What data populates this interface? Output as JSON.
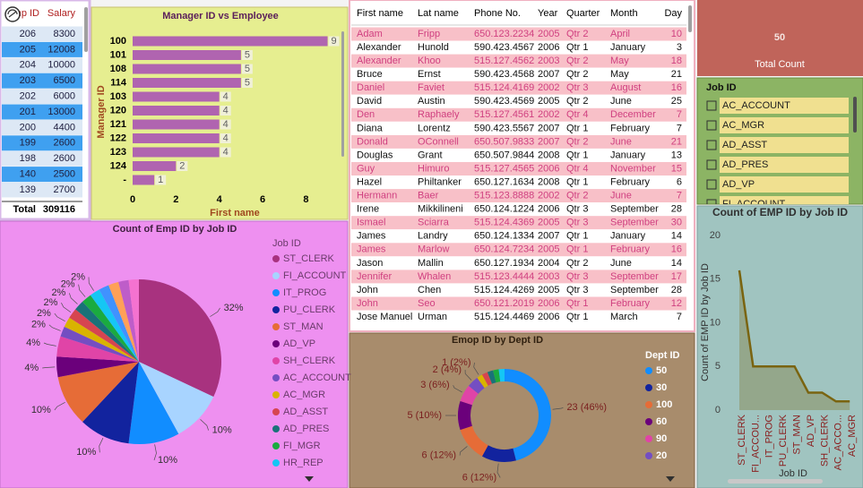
{
  "salary_table": {
    "columns": [
      "Emp ID",
      "Salary"
    ],
    "rows": [
      [
        "206",
        "8300"
      ],
      [
        "205",
        "12008"
      ],
      [
        "204",
        "10000"
      ],
      [
        "203",
        "6500"
      ],
      [
        "202",
        "6000"
      ],
      [
        "201",
        "13000"
      ],
      [
        "200",
        "4400"
      ],
      [
        "199",
        "2600"
      ],
      [
        "198",
        "2600"
      ],
      [
        "140",
        "2500"
      ],
      [
        "139",
        "2700"
      ]
    ],
    "total": [
      "Total",
      "309116"
    ]
  },
  "card": {
    "value": 50,
    "label": "Total Count"
  },
  "slicer": {
    "title": "Job ID",
    "items": [
      "AC_ACCOUNT",
      "AC_MGR",
      "AD_ASST",
      "AD_PRES",
      "AD_VP",
      "FI_ACCOUNT"
    ]
  },
  "employee_table": {
    "columns": [
      "First name",
      "Lat name",
      "Phone No.",
      "Year",
      "Quarter",
      "Month",
      "Day"
    ],
    "rows": [
      [
        "Adam",
        "Fripp",
        "650.123.2234",
        "2005",
        "Qtr 2",
        "April",
        "10"
      ],
      [
        "Alexander",
        "Hunold",
        "590.423.4567",
        "2006",
        "Qtr 1",
        "January",
        "3"
      ],
      [
        "Alexander",
        "Khoo",
        "515.127.4562",
        "2003",
        "Qtr 2",
        "May",
        "18"
      ],
      [
        "Bruce",
        "Ernst",
        "590.423.4568",
        "2007",
        "Qtr 2",
        "May",
        "21"
      ],
      [
        "Daniel",
        "Faviet",
        "515.124.4169",
        "2002",
        "Qtr 3",
        "August",
        "16"
      ],
      [
        "David",
        "Austin",
        "590.423.4569",
        "2005",
        "Qtr 2",
        "June",
        "25"
      ],
      [
        "Den",
        "Raphaely",
        "515.127.4561",
        "2002",
        "Qtr 4",
        "December",
        "7"
      ],
      [
        "Diana",
        "Lorentz",
        "590.423.5567",
        "2007",
        "Qtr 1",
        "February",
        "7"
      ],
      [
        "Donald",
        "OConnell",
        "650.507.9833",
        "2007",
        "Qtr 2",
        "June",
        "21"
      ],
      [
        "Douglas",
        "Grant",
        "650.507.9844",
        "2008",
        "Qtr 1",
        "January",
        "13"
      ],
      [
        "Guy",
        "Himuro",
        "515.127.4565",
        "2006",
        "Qtr 4",
        "November",
        "15"
      ],
      [
        "Hazel",
        "Philtanker",
        "650.127.1634",
        "2008",
        "Qtr 1",
        "February",
        "6"
      ],
      [
        "Hermann",
        "Baer",
        "515.123.8888",
        "2002",
        "Qtr 2",
        "June",
        "7"
      ],
      [
        "Irene",
        "Mikkilineni",
        "650.124.1224",
        "2006",
        "Qtr 3",
        "September",
        "28"
      ],
      [
        "Ismael",
        "Sciarra",
        "515.124.4369",
        "2005",
        "Qtr 3",
        "September",
        "30"
      ],
      [
        "James",
        "Landry",
        "650.124.1334",
        "2007",
        "Qtr 1",
        "January",
        "14"
      ],
      [
        "James",
        "Marlow",
        "650.124.7234",
        "2005",
        "Qtr 1",
        "February",
        "16"
      ],
      [
        "Jason",
        "Mallin",
        "650.127.1934",
        "2004",
        "Qtr 2",
        "June",
        "14"
      ],
      [
        "Jennifer",
        "Whalen",
        "515.123.4444",
        "2003",
        "Qtr 3",
        "September",
        "17"
      ],
      [
        "John",
        "Chen",
        "515.124.4269",
        "2005",
        "Qtr 3",
        "September",
        "28"
      ],
      [
        "John",
        "Seo",
        "650.121.2019",
        "2006",
        "Qtr 1",
        "February",
        "12"
      ],
      [
        "Jose Manuel",
        "Urman",
        "515.124.4469",
        "2006",
        "Qtr 1",
        "March",
        "7"
      ]
    ]
  },
  "chart_data": [
    {
      "type": "hbar",
      "title": "Manager ID vs Employee",
      "categories": [
        "100",
        "101",
        "108",
        "114",
        "103",
        "120",
        "121",
        "122",
        "123",
        "124",
        "-"
      ],
      "values": [
        9,
        5,
        5,
        5,
        4,
        4,
        4,
        4,
        4,
        2,
        1
      ],
      "color": "#b064b0",
      "xlim": [
        0,
        9.1
      ],
      "xticks": [
        0,
        2,
        4,
        6,
        8
      ],
      "xlabel": "First name",
      "ylabel": "Manager ID"
    },
    {
      "type": "pie",
      "title": "Count of Emp ID by Job ID",
      "legend_title": "Job ID",
      "categories": [
        "ST_CLERK",
        "FI_ACCOUNT",
        "IT_PROG",
        "PU_CLERK",
        "ST_MAN",
        "AD_VP",
        "SH_CLERK",
        "AC_ACCOUNT",
        "AC_MGR",
        "AD_ASST",
        "AD_PRES",
        "FI_MGR",
        "HR_REP",
        null,
        null,
        null,
        null
      ],
      "values": [
        32,
        10,
        10,
        10,
        10,
        4,
        4,
        2,
        2,
        2,
        2,
        2,
        2,
        2,
        2,
        2,
        2
      ],
      "value_labels": [
        "32%",
        "10%",
        "10%",
        "10%",
        "10%",
        "4%",
        "4%",
        "2%",
        "2%",
        "2%",
        "2%",
        "2%",
        "2%",
        null,
        null,
        null,
        null
      ],
      "colors": [
        "#a8327f",
        "#a8d4ff",
        "#118dff",
        "#12239e",
        "#e66c37",
        "#6b007b",
        "#e044a7",
        "#744ec2",
        "#d9b300",
        "#d64550",
        "#197278",
        "#1aab40",
        "#15c6f4",
        "#4092ff",
        "#ffa058",
        "#be5dc9",
        "#f472d0"
      ]
    },
    {
      "type": "donut",
      "title": "Emop ID by Dept ID",
      "legend_title": "Dept ID",
      "categories": [
        "50",
        "30",
        "100",
        "60",
        "90",
        "20",
        null,
        null,
        null,
        null,
        null
      ],
      "values": [
        23,
        6,
        6,
        5,
        3,
        2,
        1,
        1,
        1,
        1,
        1
      ],
      "value_labels": [
        "23 (46%)",
        "6 (12%)",
        "6 (12%)",
        "5 (10%)",
        "3 (6%)",
        "2 (4%)",
        "1 (2%)",
        null,
        null,
        null,
        null
      ],
      "colors": [
        "#118dff",
        "#12239e",
        "#e66c37",
        "#6b007b",
        "#e044a7",
        "#744ec2",
        "#d9b300",
        "#d64550",
        "#197278",
        "#1aab40",
        "#15c6f4"
      ]
    },
    {
      "type": "area",
      "title": "Count of EMP ID by Job ID",
      "categories": [
        "ST_CLERK",
        "FI_ACCOU...",
        "IT_PROG",
        "PU_CLERK",
        "ST_MAN",
        "AD_VP",
        "SH_CLERK",
        "AC_ACCO...",
        "AC_MGR"
      ],
      "values": [
        16,
        5,
        5,
        5,
        5,
        2,
        2,
        1,
        1
      ],
      "color": "#7a6410",
      "ylim": [
        0,
        20.5
      ],
      "yticks": [
        0,
        5,
        10,
        15,
        20
      ],
      "xlabel": "Job ID",
      "ylabel": "Count of EMP ID by Job ID"
    }
  ]
}
